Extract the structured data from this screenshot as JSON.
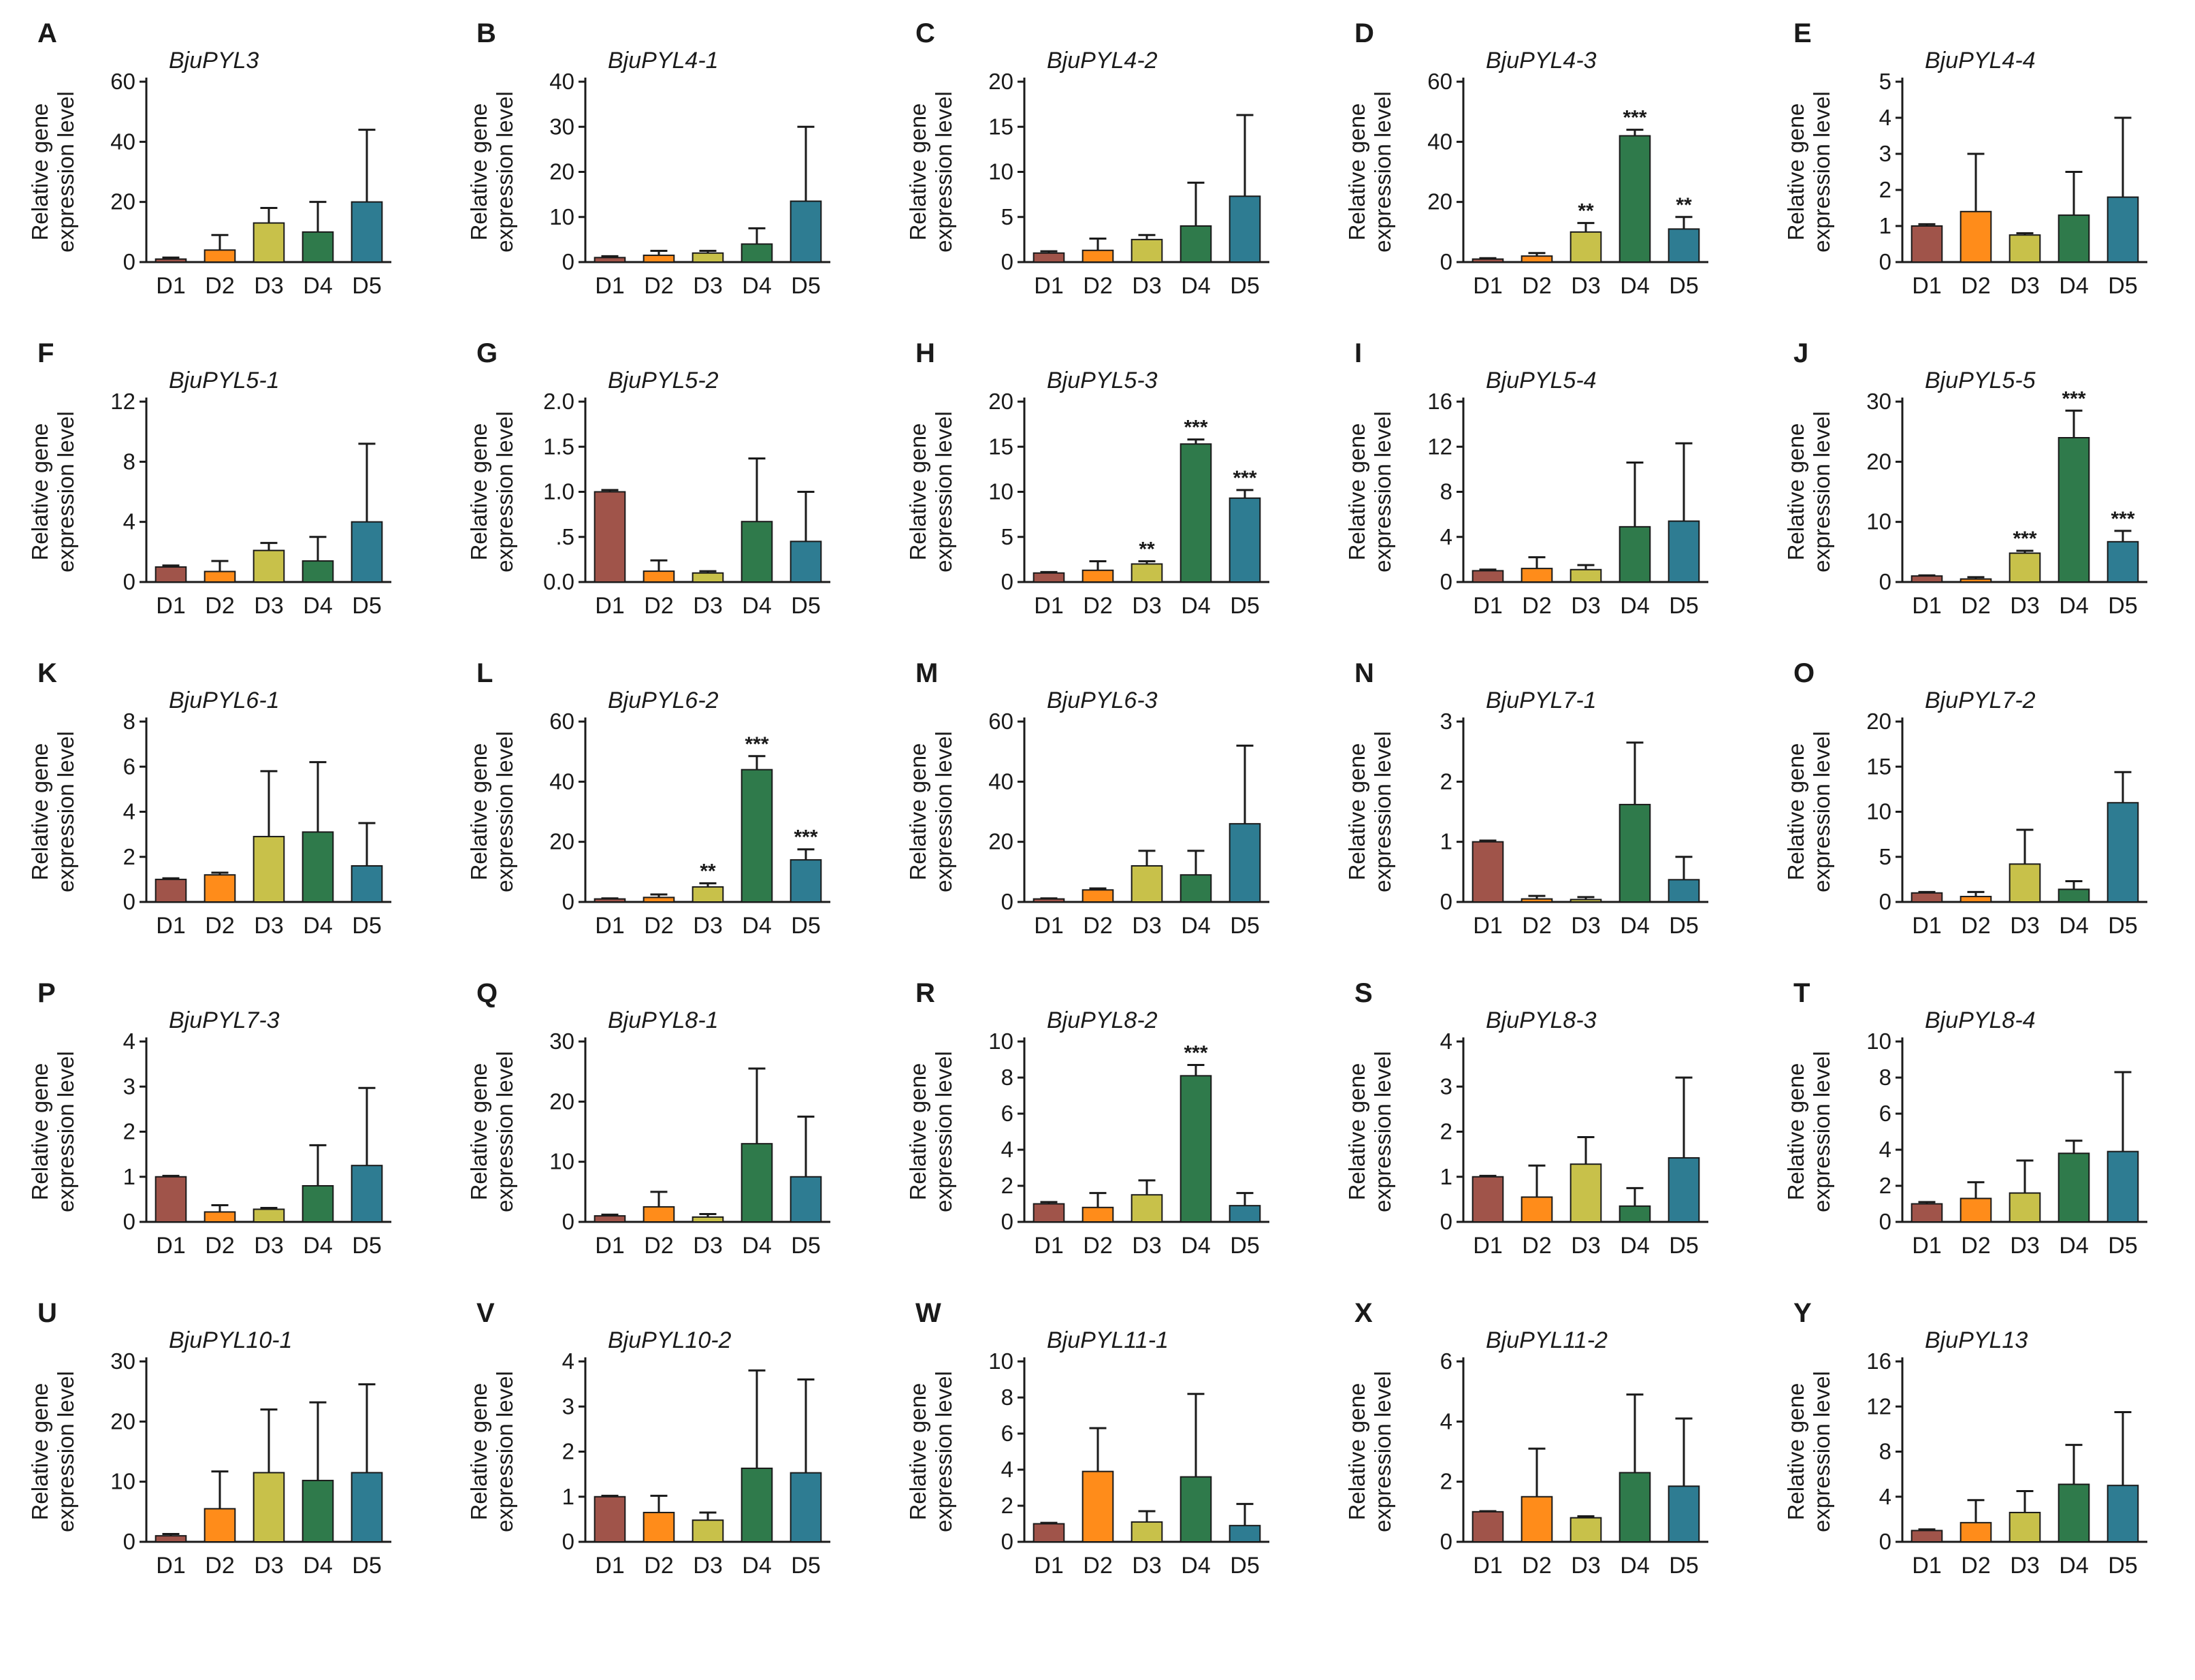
{
  "colors": [
    "#A0544A",
    "#FF8C1A",
    "#C8C14A",
    "#2F7A4B",
    "#2E7C92"
  ],
  "chart_data": [
    {
      "type": "bar",
      "label": "A",
      "title": "BjuPYL3",
      "ylabel": [
        "Relative gene",
        "expression level"
      ],
      "categories": [
        "D1",
        "D2",
        "D3",
        "D4",
        "D5"
      ],
      "yticks": [
        "0",
        "20",
        "40",
        "60"
      ],
      "ylim": [
        0,
        60
      ],
      "values": [
        1,
        4,
        13,
        10,
        20
      ],
      "errors": [
        0.5,
        5,
        5,
        10,
        24
      ],
      "sig": [
        "",
        "",
        "",
        "",
        ""
      ]
    },
    {
      "type": "bar",
      "label": "B",
      "title": "BjuPYL4-1",
      "ylabel": [
        "Relative gene",
        "expression level"
      ],
      "categories": [
        "D1",
        "D2",
        "D3",
        "D4",
        "D5"
      ],
      "yticks": [
        "0",
        "10",
        "20",
        "30",
        "40"
      ],
      "ylim": [
        0,
        40
      ],
      "values": [
        1,
        1.5,
        2,
        4,
        13.5
      ],
      "errors": [
        0.3,
        1,
        0.5,
        3.5,
        16.5
      ],
      "sig": [
        "",
        "",
        "",
        "",
        ""
      ]
    },
    {
      "type": "bar",
      "label": "C",
      "title": "BjuPYL4-2",
      "ylabel": [
        "Relative gene",
        "expression level"
      ],
      "categories": [
        "D1",
        "D2",
        "D3",
        "D4",
        "D5"
      ],
      "yticks": [
        "0",
        "5",
        "10",
        "15",
        "20"
      ],
      "ylim": [
        0,
        20
      ],
      "values": [
        1,
        1.3,
        2.5,
        4,
        7.3
      ],
      "errors": [
        0.2,
        1.3,
        0.5,
        4.8,
        9
      ],
      "sig": [
        "",
        "",
        "",
        "",
        ""
      ]
    },
    {
      "type": "bar",
      "label": "D",
      "title": "BjuPYL4-3",
      "ylabel": [
        "Relative gene",
        "expression level"
      ],
      "categories": [
        "D1",
        "D2",
        "D3",
        "D4",
        "D5"
      ],
      "yticks": [
        "0",
        "20",
        "40",
        "60"
      ],
      "ylim": [
        0,
        60
      ],
      "values": [
        1,
        2,
        10,
        42,
        11
      ],
      "errors": [
        0.3,
        1,
        3,
        2,
        4
      ],
      "sig": [
        "",
        "",
        "**",
        "***",
        "**"
      ]
    },
    {
      "type": "bar",
      "label": "E",
      "title": "BjuPYL4-4",
      "ylabel": [
        "Relative gene",
        "expression level"
      ],
      "categories": [
        "D1",
        "D2",
        "D3",
        "D4",
        "D5"
      ],
      "yticks": [
        "0",
        "1",
        "2",
        "3",
        "4",
        "5"
      ],
      "ylim": [
        0,
        5
      ],
      "values": [
        1,
        1.4,
        0.75,
        1.3,
        1.8
      ],
      "errors": [
        0.05,
        1.6,
        0.05,
        1.2,
        2.2
      ],
      "sig": [
        "",
        "",
        "",
        "",
        ""
      ]
    },
    {
      "type": "bar",
      "label": "F",
      "title": "BjuPYL5-1",
      "ylabel": [
        "Relative gene",
        "expression level"
      ],
      "categories": [
        "D1",
        "D2",
        "D3",
        "D4",
        "D5"
      ],
      "yticks": [
        "0",
        "4",
        "8",
        "12"
      ],
      "ylim": [
        0,
        12
      ],
      "values": [
        1,
        0.7,
        2.1,
        1.4,
        4
      ],
      "errors": [
        0.1,
        0.7,
        0.5,
        1.6,
        5.2
      ],
      "sig": [
        "",
        "",
        "",
        "",
        ""
      ]
    },
    {
      "type": "bar",
      "label": "G",
      "title": "BjuPYL5-2",
      "ylabel": [
        "Relative gene",
        "expression level"
      ],
      "categories": [
        "D1",
        "D2",
        "D3",
        "D4",
        "D5"
      ],
      "yticks": [
        "0.0",
        ".5",
        "1.0",
        "1.5",
        "2.0"
      ],
      "ylim": [
        0,
        2
      ],
      "values": [
        1,
        0.12,
        0.1,
        0.67,
        0.45
      ],
      "errors": [
        0.02,
        0.12,
        0.02,
        0.7,
        0.55
      ],
      "sig": [
        "",
        "",
        "",
        "",
        ""
      ]
    },
    {
      "type": "bar",
      "label": "H",
      "title": "BjuPYL5-3",
      "ylabel": [
        "Relative gene",
        "expression level"
      ],
      "categories": [
        "D1",
        "D2",
        "D3",
        "D4",
        "D5"
      ],
      "yticks": [
        "0",
        "5",
        "10",
        "15",
        "20"
      ],
      "ylim": [
        0,
        20
      ],
      "values": [
        1,
        1.3,
        2,
        15.3,
        9.3
      ],
      "errors": [
        0.1,
        1,
        0.3,
        0.5,
        0.9
      ],
      "sig": [
        "",
        "",
        "**",
        "***",
        "***"
      ]
    },
    {
      "type": "bar",
      "label": "I",
      "title": "BjuPYL5-4",
      "ylabel": [
        "Relative gene",
        "expression level"
      ],
      "categories": [
        "D1",
        "D2",
        "D3",
        "D4",
        "D5"
      ],
      "yticks": [
        "0",
        "4",
        "8",
        "12",
        "16"
      ],
      "ylim": [
        0,
        16
      ],
      "values": [
        1,
        1.2,
        1.1,
        4.9,
        5.4
      ],
      "errors": [
        0.1,
        1,
        0.4,
        5.7,
        6.9
      ],
      "sig": [
        "",
        "",
        "",
        "",
        ""
      ]
    },
    {
      "type": "bar",
      "label": "J",
      "title": "BjuPYL5-5",
      "ylabel": [
        "Relative gene",
        "expression level"
      ],
      "categories": [
        "D1",
        "D2",
        "D3",
        "D4",
        "D5"
      ],
      "yticks": [
        "0",
        "10",
        "20",
        "30"
      ],
      "ylim": [
        0,
        30
      ],
      "values": [
        1,
        0.5,
        4.8,
        24,
        6.7
      ],
      "errors": [
        0.1,
        0.3,
        0.4,
        4.5,
        1.8
      ],
      "sig": [
        "",
        "",
        "***",
        "***",
        "***"
      ]
    },
    {
      "type": "bar",
      "label": "K",
      "title": "BjuPYL6-1",
      "ylabel": [
        "Relative gene",
        "expression level"
      ],
      "categories": [
        "D1",
        "D2",
        "D3",
        "D4",
        "D5"
      ],
      "yticks": [
        "0",
        "2",
        "4",
        "6",
        "8"
      ],
      "ylim": [
        0,
        8
      ],
      "values": [
        1,
        1.2,
        2.9,
        3.1,
        1.6
      ],
      "errors": [
        0.05,
        0.1,
        2.9,
        3.1,
        1.9
      ],
      "sig": [
        "",
        "",
        "",
        "",
        ""
      ]
    },
    {
      "type": "bar",
      "label": "L",
      "title": "BjuPYL6-2",
      "ylabel": [
        "Relative gene",
        "expression level"
      ],
      "categories": [
        "D1",
        "D2",
        "D3",
        "D4",
        "D5"
      ],
      "yticks": [
        "0",
        "20",
        "40",
        "60"
      ],
      "ylim": [
        0,
        60
      ],
      "values": [
        1,
        1.5,
        5,
        44,
        14
      ],
      "errors": [
        0.2,
        1,
        1.2,
        4.5,
        3.5
      ],
      "sig": [
        "",
        "",
        "**",
        "***",
        "***"
      ]
    },
    {
      "type": "bar",
      "label": "M",
      "title": "BjuPYL6-3",
      "ylabel": [
        "Relative gene",
        "expression level"
      ],
      "categories": [
        "D1",
        "D2",
        "D3",
        "D4",
        "D5"
      ],
      "yticks": [
        "0",
        "20",
        "40",
        "60"
      ],
      "ylim": [
        0,
        60
      ],
      "values": [
        1,
        4,
        12,
        9,
        26
      ],
      "errors": [
        0.2,
        0.5,
        5,
        8,
        26
      ],
      "sig": [
        "",
        "",
        "",
        "",
        ""
      ]
    },
    {
      "type": "bar",
      "label": "N",
      "title": "BjuPYL7-1",
      "ylabel": [
        "Relative gene",
        "expression level"
      ],
      "categories": [
        "D1",
        "D2",
        "D3",
        "D4",
        "D5"
      ],
      "yticks": [
        "0",
        "1",
        "2",
        "3"
      ],
      "ylim": [
        0,
        3
      ],
      "values": [
        1,
        0.05,
        0.04,
        1.62,
        0.37
      ],
      "errors": [
        0.02,
        0.05,
        0.04,
        1.03,
        0.38
      ],
      "sig": [
        "",
        "",
        "",
        "",
        ""
      ]
    },
    {
      "type": "bar",
      "label": "O",
      "title": "BjuPYL7-2",
      "ylabel": [
        "Relative gene",
        "expression level"
      ],
      "categories": [
        "D1",
        "D2",
        "D3",
        "D4",
        "D5"
      ],
      "yticks": [
        "0",
        "5",
        "10",
        "15",
        "20"
      ],
      "ylim": [
        0,
        20
      ],
      "values": [
        1,
        0.6,
        4.2,
        1.4,
        11
      ],
      "errors": [
        0.1,
        0.5,
        3.8,
        0.9,
        3.4
      ],
      "sig": [
        "",
        "",
        "",
        "",
        ""
      ]
    },
    {
      "type": "bar",
      "label": "P",
      "title": "BjuPYL7-3",
      "ylabel": [
        "Relative gene",
        "expression level"
      ],
      "categories": [
        "D1",
        "D2",
        "D3",
        "D4",
        "D5"
      ],
      "yticks": [
        "0",
        "1",
        "2",
        "3",
        "4"
      ],
      "ylim": [
        0,
        4
      ],
      "values": [
        1,
        0.22,
        0.28,
        0.8,
        1.25
      ],
      "errors": [
        0.02,
        0.15,
        0.03,
        0.9,
        1.72
      ],
      "sig": [
        "",
        "",
        "",
        "",
        ""
      ]
    },
    {
      "type": "bar",
      "label": "Q",
      "title": "BjuPYL8-1",
      "ylabel": [
        "Relative gene",
        "expression level"
      ],
      "categories": [
        "D1",
        "D2",
        "D3",
        "D4",
        "D5"
      ],
      "yticks": [
        "0",
        "10",
        "20",
        "30"
      ],
      "ylim": [
        0,
        30
      ],
      "values": [
        1,
        2.5,
        0.8,
        13,
        7.5
      ],
      "errors": [
        0.2,
        2.5,
        0.5,
        12.5,
        10
      ],
      "sig": [
        "",
        "",
        "",
        "",
        ""
      ]
    },
    {
      "type": "bar",
      "label": "R",
      "title": "BjuPYL8-2",
      "ylabel": [
        "Relative gene",
        "expression level"
      ],
      "categories": [
        "D1",
        "D2",
        "D3",
        "D4",
        "D5"
      ],
      "yticks": [
        "0",
        "2",
        "4",
        "6",
        "8",
        "10"
      ],
      "ylim": [
        0,
        10
      ],
      "values": [
        1,
        0.8,
        1.5,
        8.1,
        0.9
      ],
      "errors": [
        0.1,
        0.8,
        0.8,
        0.6,
        0.7
      ],
      "sig": [
        "",
        "",
        "",
        "***",
        ""
      ]
    },
    {
      "type": "bar",
      "label": "S",
      "title": "BjuPYL8-3",
      "ylabel": [
        "Relative gene",
        "expression level"
      ],
      "categories": [
        "D1",
        "D2",
        "D3",
        "D4",
        "D5"
      ],
      "yticks": [
        "0",
        "1",
        "2",
        "3",
        "4"
      ],
      "ylim": [
        0,
        4
      ],
      "values": [
        1,
        0.55,
        1.28,
        0.35,
        1.42
      ],
      "errors": [
        0.02,
        0.7,
        0.6,
        0.4,
        1.78
      ],
      "sig": [
        "",
        "",
        "",
        "",
        ""
      ]
    },
    {
      "type": "bar",
      "label": "T",
      "title": "BjuPYL8-4",
      "ylabel": [
        "Relative gene",
        "expression level"
      ],
      "categories": [
        "D1",
        "D2",
        "D3",
        "D4",
        "D5"
      ],
      "yticks": [
        "0",
        "2",
        "4",
        "6",
        "8",
        "10"
      ],
      "ylim": [
        0,
        10
      ],
      "values": [
        1,
        1.3,
        1.6,
        3.8,
        3.9
      ],
      "errors": [
        0.1,
        0.9,
        1.8,
        0.7,
        4.4
      ],
      "sig": [
        "",
        "",
        "",
        "",
        ""
      ]
    },
    {
      "type": "bar",
      "label": "U",
      "title": "BjuPYL10-1",
      "ylabel": [
        "Relative gene",
        "expression level"
      ],
      "categories": [
        "D1",
        "D2",
        "D3",
        "D4",
        "D5"
      ],
      "yticks": [
        "0",
        "10",
        "20",
        "30"
      ],
      "ylim": [
        0,
        30
      ],
      "values": [
        1,
        5.5,
        11.5,
        10.2,
        11.5
      ],
      "errors": [
        0.3,
        6.2,
        10.5,
        13,
        14.7
      ],
      "sig": [
        "",
        "",
        "",
        "",
        ""
      ]
    },
    {
      "type": "bar",
      "label": "V",
      "title": "BjuPYL10-2",
      "ylabel": [
        "Relative gene",
        "expression level"
      ],
      "categories": [
        "D1",
        "D2",
        "D3",
        "D4",
        "D5"
      ],
      "yticks": [
        "0",
        "1",
        "2",
        "3",
        "4"
      ],
      "ylim": [
        0,
        4
      ],
      "values": [
        1,
        0.65,
        0.48,
        1.63,
        1.53
      ],
      "errors": [
        0.02,
        0.37,
        0.17,
        2.17,
        2.07
      ],
      "sig": [
        "",
        "",
        "",
        "",
        ""
      ]
    },
    {
      "type": "bar",
      "label": "W",
      "title": "BjuPYL11-1",
      "ylabel": [
        "Relative gene",
        "expression level"
      ],
      "categories": [
        "D1",
        "D2",
        "D3",
        "D4",
        "D5"
      ],
      "yticks": [
        "0",
        "2",
        "4",
        "6",
        "8",
        "10"
      ],
      "ylim": [
        0,
        10
      ],
      "values": [
        1,
        3.9,
        1.1,
        3.6,
        0.9
      ],
      "errors": [
        0.05,
        2.4,
        0.6,
        4.6,
        1.2
      ],
      "sig": [
        "",
        "",
        "",
        "",
        ""
      ]
    },
    {
      "type": "bar",
      "label": "X",
      "title": "BjuPYL11-2",
      "ylabel": [
        "Relative gene",
        "expression level"
      ],
      "categories": [
        "D1",
        "D2",
        "D3",
        "D4",
        "D5"
      ],
      "yticks": [
        "0",
        "2",
        "4",
        "6"
      ],
      "ylim": [
        0,
        6
      ],
      "values": [
        1,
        1.5,
        0.8,
        2.3,
        1.85
      ],
      "errors": [
        0.02,
        1.6,
        0.05,
        2.6,
        2.25
      ],
      "sig": [
        "",
        "",
        "",
        "",
        ""
      ]
    },
    {
      "type": "bar",
      "label": "Y",
      "title": "BjuPYL13",
      "ylabel": [
        "Relative gene",
        "expression level"
      ],
      "categories": [
        "D1",
        "D2",
        "D3",
        "D4",
        "D5"
      ],
      "yticks": [
        "0",
        "4",
        "8",
        "12",
        "16"
      ],
      "ylim": [
        0,
        16
      ],
      "values": [
        1,
        1.7,
        2.6,
        5.1,
        5
      ],
      "errors": [
        0.1,
        2,
        1.9,
        3.5,
        6.5
      ],
      "sig": [
        "",
        "",
        "",
        "",
        ""
      ]
    }
  ]
}
